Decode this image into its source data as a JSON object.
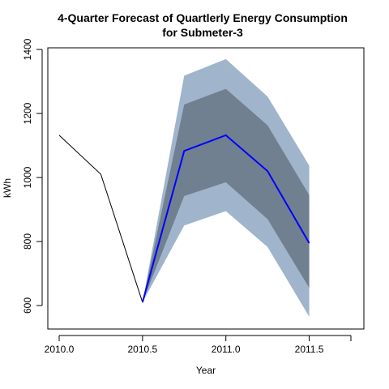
{
  "chart_data": {
    "type": "line",
    "title_line1": "4-Quarter Forecast of Quartlerly Energy Consumption",
    "title_line2": "for Submeter-3",
    "xlabel": "Year",
    "ylabel": "kWh",
    "xlim": [
      2010.0,
      2011.75
    ],
    "ylim": [
      600,
      1400
    ],
    "x_ticks": [
      "2010.0",
      "2010.5",
      "2011.0",
      "2011.5"
    ],
    "x_tick_values": [
      2010.0,
      2010.5,
      2011.0,
      2011.5
    ],
    "y_ticks": [
      "600",
      "800",
      "1000",
      "1200",
      "1400"
    ],
    "y_tick_values": [
      600,
      800,
      1000,
      1200,
      1400
    ],
    "history": {
      "x": [
        2010.0,
        2010.25,
        2010.5
      ],
      "y": [
        1132,
        1010,
        610
      ]
    },
    "forecast": {
      "x": [
        2010.5,
        2010.75,
        2011.0,
        2011.25,
        2011.5
      ],
      "mean": [
        610,
        1083,
        1132,
        1020,
        795
      ],
      "lower80": [
        610,
        942,
        985,
        870,
        655
      ],
      "upper80": [
        610,
        1228,
        1277,
        1163,
        945
      ],
      "lower95": [
        610,
        850,
        895,
        783,
        565
      ],
      "upper95": [
        610,
        1318,
        1370,
        1253,
        1037
      ]
    },
    "colors": {
      "history_line": "#000000",
      "forecast_line": "#0000ff",
      "band95": "#a0b4cc",
      "band80": "#708090",
      "frame": "#000000"
    }
  }
}
